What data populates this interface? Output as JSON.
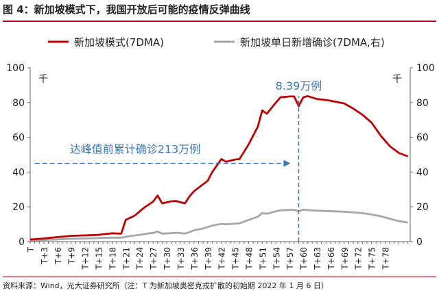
{
  "figure": {
    "title": "图 4：新加坡模式下，我国开放后可能的疫情反弹曲线",
    "source": "资料来源：Wind，光大证券研究所（注：T 为新加坡奥密克戎扩散的初始期 2022 年 1 月 6 日）"
  },
  "chart_data": {
    "type": "line",
    "legend": {
      "position": "top",
      "entries": [
        "新加坡模式(7DMA)",
        "新加坡单日新增确诊(7DMA,右)"
      ]
    },
    "x_tick_labels": [
      "T",
      "T+3",
      "T+6",
      "T+9",
      "T+12",
      "T+15",
      "T+18",
      "T+21",
      "T+24",
      "T+27",
      "T+30",
      "T+33",
      "T+36",
      "T+39",
      "T+42",
      "T+45",
      "T+48",
      "T+51",
      "T+54",
      "T+57",
      "T+60",
      "T+63",
      "T+66",
      "T+69",
      "T+72",
      "T+75",
      "T+78"
    ],
    "y_left": {
      "range": [
        0,
        100
      ],
      "ticks": [
        0,
        20,
        40,
        60,
        80,
        100
      ],
      "unit": "千"
    },
    "y_right": {
      "range": [
        0,
        100
      ],
      "ticks": [
        0,
        20,
        40,
        60,
        80,
        100
      ],
      "unit": "千"
    },
    "grid": false,
    "series": [
      {
        "name": "新加坡模式(7DMA)",
        "color": "#c00000",
        "axis": "left",
        "points": [
          [
            0,
            1.2
          ],
          [
            3,
            1.8
          ],
          [
            6,
            2.6
          ],
          [
            9,
            3.3
          ],
          [
            12,
            3.6
          ],
          [
            15,
            3.9
          ],
          [
            18,
            4.8
          ],
          [
            20,
            4.6
          ],
          [
            21,
            12.5
          ],
          [
            23,
            15
          ],
          [
            25,
            19.5
          ],
          [
            27,
            23
          ],
          [
            28,
            26.5
          ],
          [
            29,
            22
          ],
          [
            31,
            23.2
          ],
          [
            32,
            23.4
          ],
          [
            34,
            22
          ],
          [
            35,
            26
          ],
          [
            36,
            29
          ],
          [
            38,
            33
          ],
          [
            39,
            35
          ],
          [
            40,
            40
          ],
          [
            42,
            47.5
          ],
          [
            43,
            46
          ],
          [
            45,
            47.2
          ],
          [
            46,
            47.5
          ],
          [
            48,
            56
          ],
          [
            50,
            66
          ],
          [
            51,
            75.5
          ],
          [
            52,
            73.5
          ],
          [
            54,
            80
          ],
          [
            55,
            83
          ],
          [
            57,
            83.5
          ],
          [
            58,
            83.5
          ],
          [
            59,
            78
          ],
          [
            60,
            83
          ],
          [
            61,
            83.7
          ],
          [
            63,
            82
          ],
          [
            65,
            81.5
          ],
          [
            67,
            80.5
          ],
          [
            69,
            79.5
          ],
          [
            71,
            76.5
          ],
          [
            73,
            73
          ],
          [
            75,
            68.5
          ],
          [
            77,
            61
          ],
          [
            79,
            55
          ],
          [
            81,
            51
          ],
          [
            83,
            49
          ]
        ]
      },
      {
        "name": "新加坡单日新增确诊(7DMA,右)",
        "color": "#a6a6a6",
        "axis": "right",
        "points": [
          [
            0,
            0.6
          ],
          [
            3,
            0.9
          ],
          [
            6,
            1.3
          ],
          [
            9,
            1.6
          ],
          [
            12,
            1.8
          ],
          [
            15,
            2.0
          ],
          [
            18,
            2.3
          ],
          [
            20,
            2.3
          ],
          [
            21,
            2.8
          ],
          [
            23,
            3.5
          ],
          [
            25,
            4.3
          ],
          [
            27,
            5.0
          ],
          [
            28,
            5.8
          ],
          [
            29,
            4.6
          ],
          [
            31,
            4.9
          ],
          [
            32,
            5.1
          ],
          [
            34,
            4.7
          ],
          [
            35,
            5.4
          ],
          [
            36,
            6.5
          ],
          [
            38,
            7.5
          ],
          [
            39,
            8.4
          ],
          [
            40,
            9.2
          ],
          [
            42,
            10.2
          ],
          [
            43,
            10
          ],
          [
            45,
            10.3
          ],
          [
            46,
            10.5
          ],
          [
            48,
            12.5
          ],
          [
            50,
            14.3
          ],
          [
            51,
            16.5
          ],
          [
            52,
            16
          ],
          [
            54,
            17.5
          ],
          [
            55,
            18
          ],
          [
            57,
            18.2
          ],
          [
            58,
            18.3
          ],
          [
            59,
            17.5
          ],
          [
            60,
            18.4
          ],
          [
            61,
            18.1
          ],
          [
            63,
            17.8
          ],
          [
            65,
            17.6
          ],
          [
            67,
            17.4
          ],
          [
            69,
            17.2
          ],
          [
            71,
            16.8
          ],
          [
            73,
            16.4
          ],
          [
            75,
            15.6
          ],
          [
            77,
            14.6
          ],
          [
            79,
            13.2
          ],
          [
            81,
            11.8
          ],
          [
            83,
            11.0
          ]
        ]
      }
    ],
    "annotations": [
      {
        "text": "8.39万例",
        "color": "#3b78c3",
        "x": 59
      },
      {
        "text": "达峰值前累计确诊213万例",
        "color": "#3b78c3",
        "arrow_from_x": 1,
        "arrow_to_x": 59,
        "arrow_y": 45
      }
    ]
  }
}
